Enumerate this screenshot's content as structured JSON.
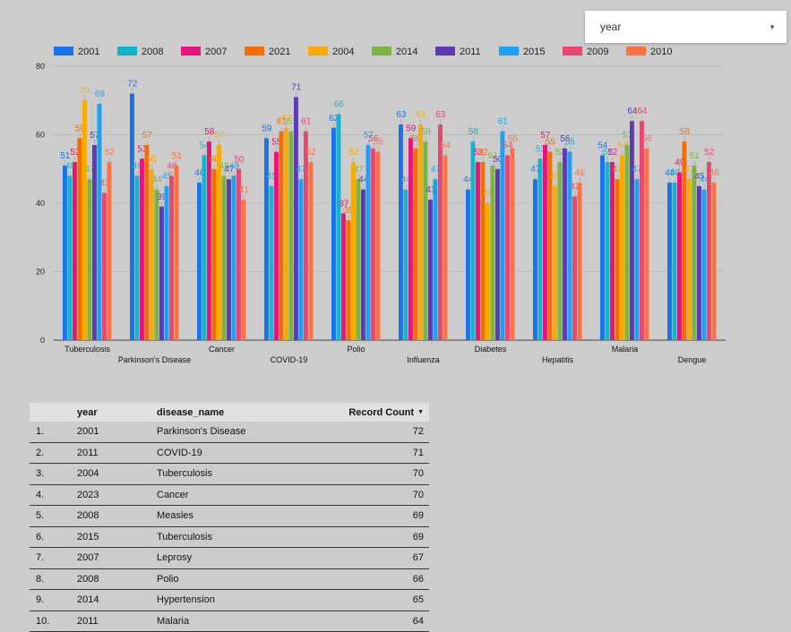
{
  "filter": {
    "label": "year"
  },
  "chart_data": {
    "type": "bar",
    "categories": [
      "Tuberculosis",
      "Parkinson's Disease",
      "Cancer",
      "COVID-19",
      "Polio",
      "Influenza",
      "Diabetes",
      "Hepatitis",
      "Malaria",
      "Dengue"
    ],
    "yticks": [
      "0",
      "20",
      "40",
      "60",
      "80"
    ],
    "ylim": [
      0,
      80
    ],
    "grid": true,
    "legend_position": "top-left",
    "series": [
      {
        "name": "2001",
        "color": "#1a73e8",
        "values": [
          51,
          72,
          46,
          59,
          62,
          63,
          44,
          47,
          54,
          46
        ]
      },
      {
        "name": "2008",
        "color": "#12b5cb",
        "values": [
          48,
          48,
          54,
          45,
          66,
          44,
          58,
          53,
          52,
          46
        ]
      },
      {
        "name": "2007",
        "color": "#e8137d",
        "values": [
          52,
          53,
          58,
          55,
          37,
          59,
          52,
          57,
          52,
          49
        ]
      },
      {
        "name": "2021",
        "color": "#f56d00",
        "values": [
          59,
          57,
          50,
          61,
          35,
          56,
          52,
          55,
          47,
          58
        ]
      },
      {
        "name": "2004",
        "color": "#f9ab00",
        "values": [
          70,
          50,
          57,
          62,
          52,
          63,
          40,
          45,
          54,
          47
        ]
      },
      {
        "name": "2014",
        "color": "#7cb342",
        "values": [
          47,
          44,
          48,
          61,
          47,
          58,
          51,
          52,
          57,
          51
        ]
      },
      {
        "name": "2011",
        "color": "#5c3bb3",
        "values": [
          57,
          39,
          47,
          71,
          44,
          41,
          50,
          56,
          64,
          45
        ]
      },
      {
        "name": "2015",
        "color": "#1ea1f2",
        "values": [
          69,
          45,
          48,
          47,
          57,
          47,
          61,
          55,
          47,
          44
        ]
      },
      {
        "name": "2009",
        "color": "#e8486f",
        "values": [
          43,
          48,
          50,
          61,
          56,
          63,
          54,
          42,
          64,
          52
        ]
      },
      {
        "name": "2010",
        "color": "#ff7043",
        "values": [
          52,
          51,
          41,
          52,
          55,
          54,
          56,
          46,
          56,
          46
        ]
      }
    ]
  },
  "table": {
    "headers": {
      "year": "year",
      "disease": "disease_name",
      "count": "Record Count"
    },
    "rows": [
      {
        "idx": "1.",
        "year": "2001",
        "disease": "Parkinson's Disease",
        "count": "72"
      },
      {
        "idx": "2.",
        "year": "2011",
        "disease": "COVID-19",
        "count": "71"
      },
      {
        "idx": "3.",
        "year": "2004",
        "disease": "Tuberculosis",
        "count": "70"
      },
      {
        "idx": "4.",
        "year": "2023",
        "disease": "Cancer",
        "count": "70"
      },
      {
        "idx": "5.",
        "year": "2008",
        "disease": "Measles",
        "count": "69"
      },
      {
        "idx": "6.",
        "year": "2015",
        "disease": "Tuberculosis",
        "count": "69"
      },
      {
        "idx": "7.",
        "year": "2007",
        "disease": "Leprosy",
        "count": "67"
      },
      {
        "idx": "8.",
        "year": "2008",
        "disease": "Polio",
        "count": "66"
      },
      {
        "idx": "9.",
        "year": "2014",
        "disease": "Hypertension",
        "count": "65"
      },
      {
        "idx": "10.",
        "year": "2011",
        "disease": "Malaria",
        "count": "64"
      }
    ]
  }
}
